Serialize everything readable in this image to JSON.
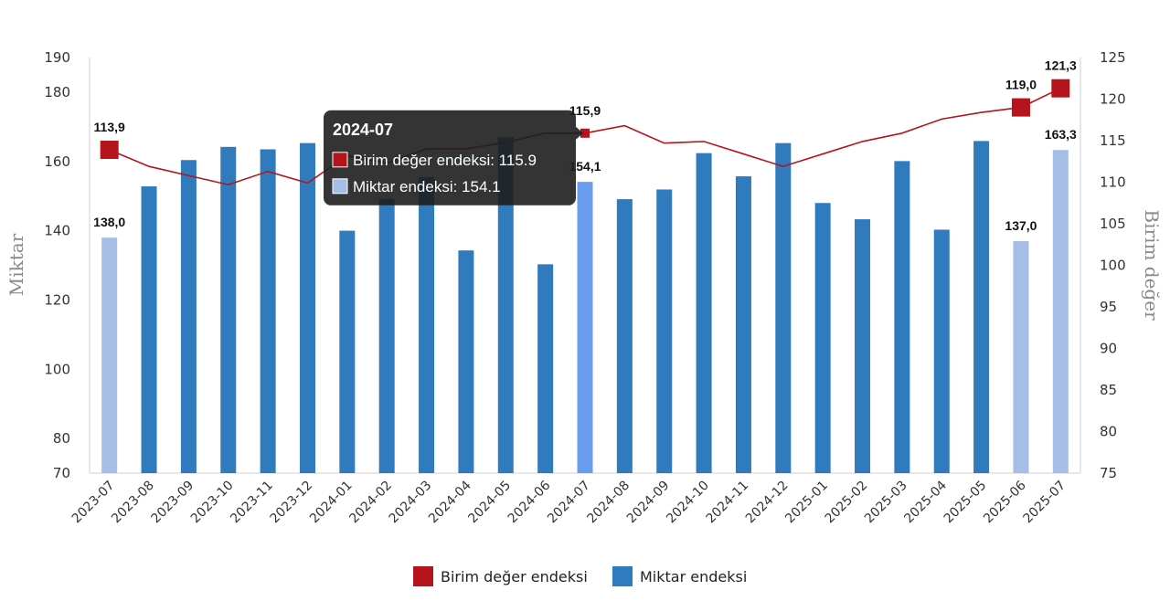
{
  "chart_data": {
    "type": "bar",
    "categories": [
      "2023-07",
      "2023-08",
      "2023-09",
      "2023-10",
      "2023-11",
      "2023-12",
      "2024-01",
      "2024-02",
      "2024-03",
      "2024-04",
      "2024-05",
      "2024-06",
      "2024-07",
      "2024-08",
      "2024-09",
      "2024-10",
      "2024-11",
      "2024-12",
      "2025-01",
      "2025-02",
      "2025-03",
      "2025-04",
      "2025-05",
      "2025-06",
      "2025-07"
    ],
    "series": [
      {
        "name": "Miktar endeksi",
        "type": "bar",
        "axis": "left",
        "values": [
          138.0,
          152.8,
          160.4,
          164.2,
          163.5,
          165.3,
          140.0,
          149.2,
          155.5,
          134.3,
          167.0,
          130.3,
          154.1,
          149.1,
          151.9,
          162.4,
          155.7,
          165.3,
          148.0,
          143.3,
          160.1,
          140.3,
          165.9,
          137.0,
          163.3
        ],
        "highlight": [
          0,
          12,
          23,
          24
        ]
      },
      {
        "name": "Birim değer endeksi",
        "type": "line",
        "axis": "right",
        "values": [
          113.9,
          111.9,
          110.8,
          109.7,
          111.3,
          109.9,
          113.2,
          112.3,
          114.0,
          114.0,
          114.8,
          115.9,
          115.9,
          116.8,
          114.7,
          114.9,
          113.4,
          111.9,
          113.4,
          114.9,
          115.9,
          117.6,
          118.4,
          119.0,
          121.3
        ],
        "markers": [
          0,
          12,
          23,
          24
        ]
      }
    ],
    "data_labels": {
      "bars": [
        {
          "index": 0,
          "text": "138,0"
        },
        {
          "index": 12,
          "text": "154,1"
        },
        {
          "index": 23,
          "text": "137,0"
        },
        {
          "index": 24,
          "text": "163,3"
        }
      ],
      "line": [
        {
          "index": 0,
          "text": "113,9"
        },
        {
          "index": 12,
          "text": "115,9"
        },
        {
          "index": 23,
          "text": "119,0"
        },
        {
          "index": 24,
          "text": "121,3"
        }
      ]
    },
    "ylabel": "Miktar",
    "y2label": "Birim değer",
    "ylim": [
      70,
      190
    ],
    "yticks": [
      70,
      80,
      100,
      120,
      140,
      160,
      180,
      190
    ],
    "y2lim": [
      75,
      125
    ],
    "y2ticks": [
      75,
      80,
      85,
      90,
      95,
      100,
      105,
      110,
      115,
      120,
      125
    ],
    "legend": {
      "placement": "bottom-center",
      "items": [
        "Birim değer endeksi",
        "Miktar endeksi"
      ]
    },
    "tooltip": {
      "index": 12,
      "title": "2024-07",
      "rows": [
        "Birim değer endeksi: 115.9",
        "Miktar endeksi: 154.1"
      ]
    },
    "grid": false
  },
  "colors": {
    "bar": "#2f7bbd",
    "bar_highlight": "#a6bde6",
    "bar_hover": "#6a9df0",
    "line": "#b5141c",
    "marker": "#b5141c",
    "tooltip_bg": "#1e1e1e"
  }
}
